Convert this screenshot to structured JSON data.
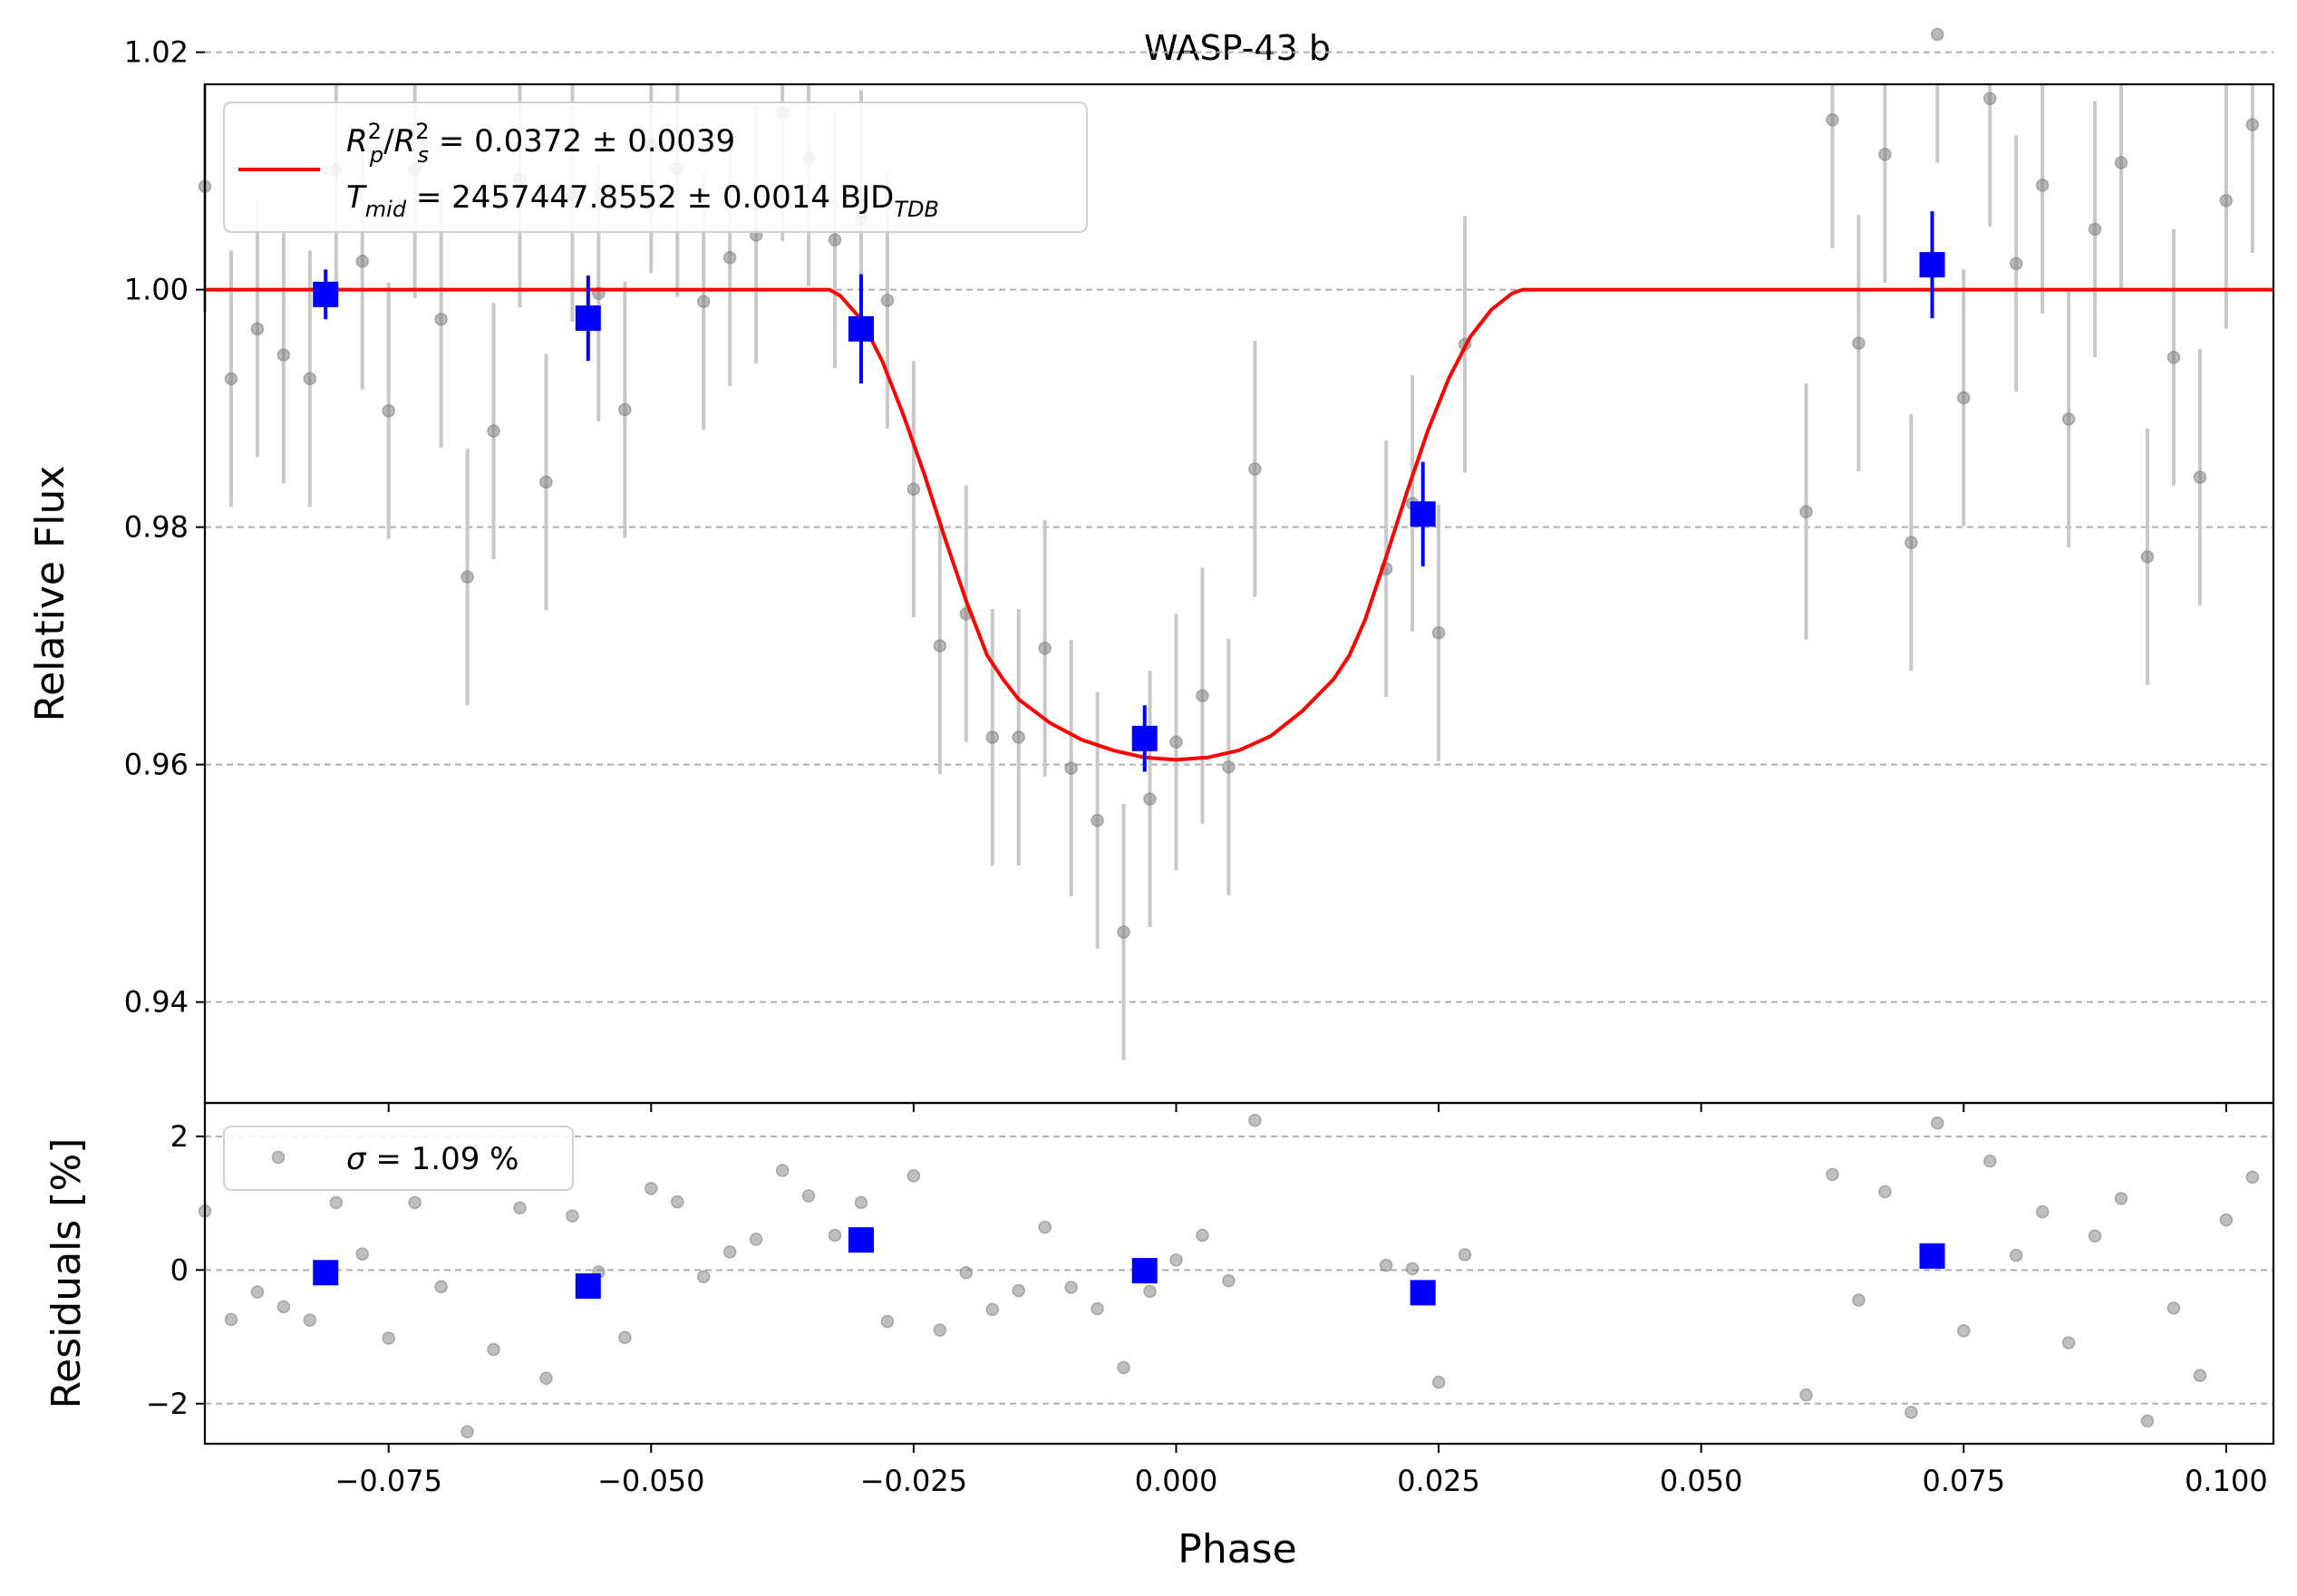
{
  "chart_data": [
    {
      "panel": "top",
      "type": "scatter",
      "title": "WASP-43 b",
      "xlabel": "",
      "ylabel": "Relative Flux",
      "xlim": [
        -0.0925,
        0.1045
      ],
      "ylim": [
        0.9315,
        1.0173
      ],
      "y_ticks": [
        0.94,
        0.96,
        0.98,
        1.0,
        1.02
      ],
      "y_tick_labels": [
        "0.94",
        "0.96",
        "0.98",
        "1.00",
        "1.02"
      ],
      "grid": "y dashed",
      "legend": {
        "placement": "top-left",
        "line1": {
          "base": "R",
          "sub": "p",
          "sup": "2",
          "slash": "/",
          "base2": "R",
          "sub2": "s",
          "sup2": "2",
          "rest": " = 0.0372 ± 0.0039"
        },
        "line2": {
          "base": "T",
          "sub": "mid",
          "rest": " = 2457447.8552 ± 0.0014 BJD",
          "sub_end": "TDB"
        },
        "color": "#ff0000"
      },
      "colors": {
        "raw": "#808080",
        "raw_err": "#c8c8c8",
        "binned": "#0000ff",
        "model": "#ff0000"
      },
      "raw_points": [
        {
          "x": -0.0925,
          "y": 1.0087,
          "e": 0.0106
        },
        {
          "x": -0.09,
          "y": 0.9925,
          "e": 0.0108
        },
        {
          "x": -0.0875,
          "y": 0.9967,
          "e": 0.0108
        },
        {
          "x": -0.085,
          "y": 0.9945,
          "e": 0.0108
        },
        {
          "x": -0.0825,
          "y": 0.9925,
          "e": 0.0108
        },
        {
          "x": -0.08,
          "y": 1.0101,
          "e": 0.0108
        },
        {
          "x": -0.0775,
          "y": 1.0024,
          "e": 0.0108
        },
        {
          "x": -0.075,
          "y": 0.9898,
          "e": 0.0108
        },
        {
          "x": -0.0725,
          "y": 1.0101,
          "e": 0.0108
        },
        {
          "x": -0.07,
          "y": 0.9975,
          "e": 0.0108
        },
        {
          "x": -0.0675,
          "y": 0.9758,
          "e": 0.0108
        },
        {
          "x": -0.065,
          "y": 0.9881,
          "e": 0.0108
        },
        {
          "x": -0.0625,
          "y": 1.0093,
          "e": 0.0108
        },
        {
          "x": -0.06,
          "y": 0.9838,
          "e": 0.0108
        },
        {
          "x": -0.0575,
          "y": 1.0081,
          "e": 0.0108
        },
        {
          "x": -0.055,
          "y": 0.9997,
          "e": 0.0108
        },
        {
          "x": -0.0525,
          "y": 0.9899,
          "e": 0.0108
        },
        {
          "x": -0.05,
          "y": 1.0122,
          "e": 0.0108
        },
        {
          "x": -0.0475,
          "y": 1.0102,
          "e": 0.0108
        },
        {
          "x": -0.045,
          "y": 0.999,
          "e": 0.0108
        },
        {
          "x": -0.0425,
          "y": 1.0027,
          "e": 0.0108
        },
        {
          "x": -0.04,
          "y": 1.0046,
          "e": 0.0108
        },
        {
          "x": -0.0375,
          "y": 1.0149,
          "e": 0.0108
        },
        {
          "x": -0.035,
          "y": 1.0111,
          "e": 0.0108
        },
        {
          "x": -0.0325,
          "y": 1.0042,
          "e": 0.0108
        },
        {
          "x": -0.03,
          "y": 1.006,
          "e": 0.0108
        },
        {
          "x": -0.0275,
          "y": 0.9991,
          "e": 0.0108
        },
        {
          "x": -0.025,
          "y": 0.9832,
          "e": 0.0108
        },
        {
          "x": -0.0225,
          "y": 0.97,
          "e": 0.0108
        },
        {
          "x": -0.02,
          "y": 0.9727,
          "e": 0.0108
        },
        {
          "x": -0.0175,
          "y": 0.9623,
          "e": 0.0108
        },
        {
          "x": -0.015,
          "y": 0.9623,
          "e": 0.0108
        },
        {
          "x": -0.0125,
          "y": 0.9698,
          "e": 0.0108
        },
        {
          "x": -0.01,
          "y": 0.9597,
          "e": 0.0108
        },
        {
          "x": -0.0075,
          "y": 0.9553,
          "e": 0.0108
        },
        {
          "x": -0.005,
          "y": 0.9459,
          "e": 0.0108
        },
        {
          "x": -0.0025,
          "y": 0.9571,
          "e": 0.0108
        },
        {
          "x": 0.0,
          "y": 0.9619,
          "e": 0.0108
        },
        {
          "x": 0.0025,
          "y": 0.9658,
          "e": 0.0108
        },
        {
          "x": 0.005,
          "y": 0.9598,
          "e": 0.0108
        },
        {
          "x": 0.0075,
          "y": 0.9849,
          "e": 0.0108
        },
        {
          "x": 0.02,
          "y": 0.9765,
          "e": 0.0108
        },
        {
          "x": 0.0225,
          "y": 0.982,
          "e": 0.0108
        },
        {
          "x": 0.025,
          "y": 0.9711,
          "e": 0.0108
        },
        {
          "x": 0.0275,
          "y": 0.9954,
          "e": 0.0108
        },
        {
          "x": 0.06,
          "y": 0.9813,
          "e": 0.0108
        },
        {
          "x": 0.0625,
          "y": 1.0143,
          "e": 0.0108
        },
        {
          "x": 0.065,
          "y": 0.9955,
          "e": 0.0108
        },
        {
          "x": 0.0675,
          "y": 1.0114,
          "e": 0.0108
        },
        {
          "x": 0.07,
          "y": 0.9787,
          "e": 0.0108
        },
        {
          "x": 0.0725,
          "y": 1.0215,
          "e": 0.0108
        },
        {
          "x": 0.075,
          "y": 0.9909,
          "e": 0.0108
        },
        {
          "x": 0.0775,
          "y": 1.0161,
          "e": 0.0108
        },
        {
          "x": 0.08,
          "y": 1.0022,
          "e": 0.0108
        },
        {
          "x": 0.0825,
          "y": 1.0088,
          "e": 0.0108
        },
        {
          "x": 0.085,
          "y": 0.9891,
          "e": 0.0108
        },
        {
          "x": 0.0875,
          "y": 1.0051,
          "e": 0.0108
        },
        {
          "x": 0.09,
          "y": 1.0107,
          "e": 0.0108
        },
        {
          "x": 0.0925,
          "y": 0.9775,
          "e": 0.0108
        },
        {
          "x": 0.095,
          "y": 0.9943,
          "e": 0.0108
        },
        {
          "x": 0.0975,
          "y": 0.9842,
          "e": 0.0108
        },
        {
          "x": 0.1,
          "y": 1.0075,
          "e": 0.0108
        },
        {
          "x": 0.1025,
          "y": 1.0139,
          "e": 0.0108
        }
      ],
      "binned_points": [
        {
          "x": -0.081,
          "y": 0.9996,
          "e": 0.0021
        },
        {
          "x": -0.056,
          "y": 0.9976,
          "e": 0.0036
        },
        {
          "x": -0.03,
          "y": 0.9967,
          "e": 0.0046
        },
        {
          "x": -0.003,
          "y": 0.9622,
          "e": 0.0028
        },
        {
          "x": 0.0235,
          "y": 0.9811,
          "e": 0.0044
        },
        {
          "x": 0.072,
          "y": 1.0021,
          "e": 0.0045
        }
      ],
      "model": {
        "x": [
          -0.0925,
          -0.033,
          -0.032,
          -0.03,
          -0.028,
          -0.026,
          -0.024,
          -0.022,
          -0.02,
          -0.018,
          -0.0165,
          -0.015,
          -0.012,
          -0.009,
          -0.006,
          -0.003,
          0.0,
          0.003,
          0.006,
          0.009,
          0.012,
          0.015,
          0.0165,
          0.018,
          0.02,
          0.022,
          0.024,
          0.026,
          0.028,
          0.03,
          0.032,
          0.033,
          0.1045
        ],
        "y": [
          1.0,
          1.0,
          0.9995,
          0.9975,
          0.994,
          0.9895,
          0.9845,
          0.979,
          0.9738,
          0.9692,
          0.9672,
          0.9655,
          0.9635,
          0.9621,
          0.9612,
          0.9606,
          0.9604,
          0.9606,
          0.9612,
          0.9624,
          0.9645,
          0.9672,
          0.9692,
          0.9722,
          0.9775,
          0.983,
          0.9882,
          0.9926,
          0.996,
          0.9983,
          0.9997,
          1.0,
          1.0
        ]
      }
    },
    {
      "panel": "bottom",
      "type": "scatter",
      "xlabel": "Phase",
      "ylabel": "Residuals [%]",
      "xlim": [
        -0.0925,
        0.1045
      ],
      "ylim": [
        -2.6,
        2.5
      ],
      "x_ticks": [
        -0.075,
        -0.05,
        -0.025,
        0.0,
        0.025,
        0.05,
        0.075,
        0.1
      ],
      "x_tick_labels": [
        "−0.075",
        "−0.050",
        "−0.025",
        "0.000",
        "0.025",
        "0.050",
        "0.075",
        "0.100"
      ],
      "y_ticks": [
        -2,
        0,
        2
      ],
      "y_tick_labels": [
        "−2",
        "0",
        "2"
      ],
      "grid": "y dashed",
      "legend": {
        "placement": "top-left",
        "symbol": "σ",
        "rest": " = 1.09 %"
      },
      "raw_points": [
        {
          "x": -0.0925,
          "y": 0.88
        },
        {
          "x": -0.09,
          "y": -0.74
        },
        {
          "x": -0.0875,
          "y": -0.33
        },
        {
          "x": -0.085,
          "y": -0.55
        },
        {
          "x": -0.0825,
          "y": -0.75
        },
        {
          "x": -0.08,
          "y": 1.01
        },
        {
          "x": -0.0775,
          "y": 0.24
        },
        {
          "x": -0.075,
          "y": -1.02
        },
        {
          "x": -0.0725,
          "y": 1.01
        },
        {
          "x": -0.07,
          "y": -0.25
        },
        {
          "x": -0.0675,
          "y": -2.42
        },
        {
          "x": -0.065,
          "y": -1.19
        },
        {
          "x": -0.0625,
          "y": 0.93
        },
        {
          "x": -0.06,
          "y": -1.62
        },
        {
          "x": -0.0575,
          "y": 0.81
        },
        {
          "x": -0.055,
          "y": -0.03
        },
        {
          "x": -0.0525,
          "y": -1.01
        },
        {
          "x": -0.05,
          "y": 1.22
        },
        {
          "x": -0.0475,
          "y": 1.02
        },
        {
          "x": -0.045,
          "y": -0.1
        },
        {
          "x": -0.0425,
          "y": 0.27
        },
        {
          "x": -0.04,
          "y": 0.46
        },
        {
          "x": -0.0375,
          "y": 1.49
        },
        {
          "x": -0.035,
          "y": 1.11
        },
        {
          "x": -0.0325,
          "y": 0.52
        },
        {
          "x": -0.03,
          "y": 1.01
        },
        {
          "x": -0.0275,
          "y": -0.77
        },
        {
          "x": -0.025,
          "y": 1.41
        },
        {
          "x": -0.0225,
          "y": -0.9
        },
        {
          "x": -0.02,
          "y": -0.04
        },
        {
          "x": -0.0175,
          "y": -0.59
        },
        {
          "x": -0.015,
          "y": -0.31
        },
        {
          "x": -0.0125,
          "y": 0.64
        },
        {
          "x": -0.01,
          "y": -0.26
        },
        {
          "x": -0.0075,
          "y": -0.58
        },
        {
          "x": -0.005,
          "y": -1.46
        },
        {
          "x": -0.0025,
          "y": -0.32
        },
        {
          "x": 0.0,
          "y": 0.15
        },
        {
          "x": 0.0025,
          "y": 0.52
        },
        {
          "x": 0.005,
          "y": -0.16
        },
        {
          "x": 0.0075,
          "y": 2.24
        },
        {
          "x": 0.02,
          "y": 0.07
        },
        {
          "x": 0.0225,
          "y": 0.02
        },
        {
          "x": 0.025,
          "y": -1.68
        },
        {
          "x": 0.0275,
          "y": 0.23
        },
        {
          "x": 0.06,
          "y": -1.87
        },
        {
          "x": 0.0625,
          "y": 1.43
        },
        {
          "x": 0.065,
          "y": -0.45
        },
        {
          "x": 0.0675,
          "y": 1.17
        },
        {
          "x": 0.07,
          "y": -2.13
        },
        {
          "x": 0.0725,
          "y": 2.2
        },
        {
          "x": 0.075,
          "y": -0.91
        },
        {
          "x": 0.0775,
          "y": 1.63
        },
        {
          "x": 0.08,
          "y": 0.22
        },
        {
          "x": 0.0825,
          "y": 0.87
        },
        {
          "x": 0.085,
          "y": -1.09
        },
        {
          "x": 0.0875,
          "y": 0.51
        },
        {
          "x": 0.09,
          "y": 1.07
        },
        {
          "x": 0.0925,
          "y": -2.26
        },
        {
          "x": 0.095,
          "y": -0.57
        },
        {
          "x": 0.0975,
          "y": -1.58
        },
        {
          "x": 0.1,
          "y": 0.75
        },
        {
          "x": 0.1025,
          "y": 1.39
        }
      ],
      "binned_points": [
        {
          "x": -0.081,
          "y": -0.04
        },
        {
          "x": -0.056,
          "y": -0.24
        },
        {
          "x": -0.03,
          "y": 0.45
        },
        {
          "x": -0.003,
          "y": -0.01
        },
        {
          "x": 0.0235,
          "y": -0.34
        },
        {
          "x": 0.072,
          "y": 0.21
        }
      ]
    }
  ]
}
